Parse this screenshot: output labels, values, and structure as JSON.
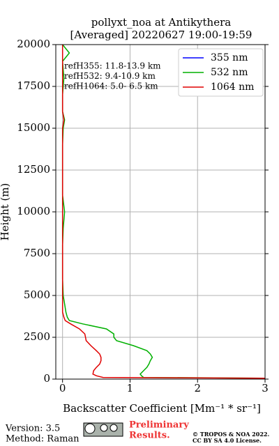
{
  "chart_data": {
    "type": "line",
    "title": "pollyxt_noa at Antikythera",
    "subtitle": "[Averaged] 20220627 19:00-19:59",
    "x_label": "Backscatter Coefficient [Mm⁻¹ * sr⁻¹]",
    "y_label": "Height (m)",
    "annotations": [
      "refH355: 11.8-13.9 km",
      "refH532:  9.4-10.9 km",
      "refH1064:  5.0- 6.5 km"
    ],
    "y": [
      50,
      100,
      200,
      300,
      500,
      700,
      900,
      1100,
      1300,
      1500,
      1700,
      2000,
      2300,
      2500,
      2700,
      3000,
      3300,
      3500,
      3700,
      4000,
      4500,
      5000,
      6000,
      7000,
      8000,
      9000,
      10000,
      11000,
      12000,
      13000,
      14000,
      15000,
      15500,
      16000,
      17000,
      18000,
      19000,
      19500,
      20000
    ],
    "series": [
      {
        "name": "355 nm",
        "color": "#0000ff",
        "values": [
          null,
          null,
          null,
          null,
          null,
          null,
          null,
          null,
          null,
          null,
          null,
          null,
          null,
          null,
          null,
          null,
          null,
          null,
          null,
          null,
          null,
          null,
          null,
          null,
          null,
          null,
          null,
          null,
          null,
          null,
          null,
          null,
          null,
          null,
          null,
          null,
          null,
          null,
          null
        ]
      },
      {
        "name": "532 nm",
        "color": "#00b000",
        "values": [
          3.0,
          1.2,
          1.17,
          1.15,
          1.2,
          1.25,
          1.28,
          1.3,
          1.33,
          1.3,
          1.25,
          1.05,
          0.8,
          0.76,
          0.76,
          0.65,
          0.3,
          0.1,
          0.07,
          0.05,
          0.03,
          0.01,
          0.0,
          0.0,
          0.0,
          0.01,
          0.03,
          0.0,
          0.0,
          0.0,
          0.0,
          0.01,
          0.03,
          0.0,
          0.0,
          0.02,
          0.0,
          0.1,
          0.0
        ]
      },
      {
        "name": "1064 nm",
        "color": "#e00000",
        "values": [
          3.0,
          0.6,
          0.5,
          0.45,
          0.46,
          0.5,
          0.55,
          0.57,
          0.57,
          0.55,
          0.5,
          0.42,
          0.35,
          0.34,
          0.33,
          0.25,
          0.12,
          0.04,
          0.02,
          0.0,
          0.0,
          0.0,
          0.0,
          0.0,
          0.0,
          0.0,
          0.0,
          0.0,
          0.0,
          0.0,
          0.0,
          0.0,
          0.02,
          0.0,
          0.0,
          0.0,
          0.0,
          0.0,
          0.0
        ]
      }
    ],
    "xlim": [
      -0.1,
      3
    ],
    "xticks": [
      0,
      1,
      2,
      3
    ],
    "ylim": [
      0,
      20000
    ],
    "yticks": [
      0,
      2500,
      5000,
      7500,
      10000,
      12500,
      15000,
      17500,
      20000
    ],
    "grid": true,
    "legend": "upper right"
  },
  "footer": {
    "version": "Version: 3.5",
    "method": "Method: Raman",
    "notice": [
      "Preliminary",
      "Results."
    ],
    "copyright": [
      "© TROPOS & NOA 2022.",
      "CC BY SA 4.0 License."
    ]
  }
}
